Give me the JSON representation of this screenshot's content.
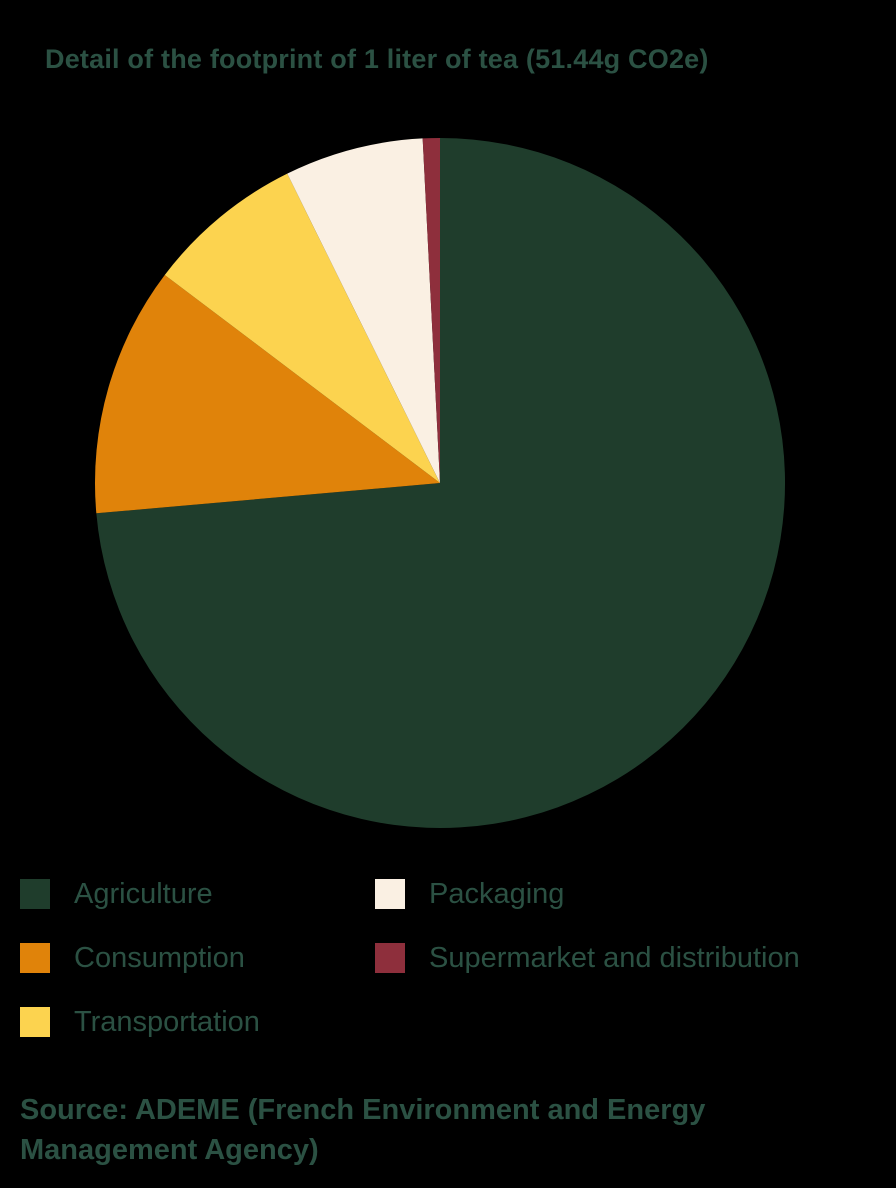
{
  "colors": {
    "background": "#000000",
    "text": "#2B5143"
  },
  "chart_data": {
    "type": "pie",
    "title": "Detail of the footprint of 1 liter of tea (51.44g CO2e)",
    "total_footprint_label": "51.44g CO2e",
    "start_angle_deg": 0,
    "direction": "clockwise",
    "legend_position": "bottom",
    "slices": [
      {
        "label": "Agriculture",
        "percent": 73.6,
        "color": "#1F3D2C"
      },
      {
        "label": "Consumption",
        "percent": 11.7,
        "color": "#E0830A"
      },
      {
        "label": "Transportation",
        "percent": 7.4,
        "color": "#FCD34F"
      },
      {
        "label": "Packaging",
        "percent": 6.5,
        "color": "#FAF0E3"
      },
      {
        "label": "Supermarket and distribution",
        "percent": 0.8,
        "color": "#8E2F3C"
      }
    ],
    "source": "Source: ADEME (French Environment and Energy Management Agency)"
  }
}
